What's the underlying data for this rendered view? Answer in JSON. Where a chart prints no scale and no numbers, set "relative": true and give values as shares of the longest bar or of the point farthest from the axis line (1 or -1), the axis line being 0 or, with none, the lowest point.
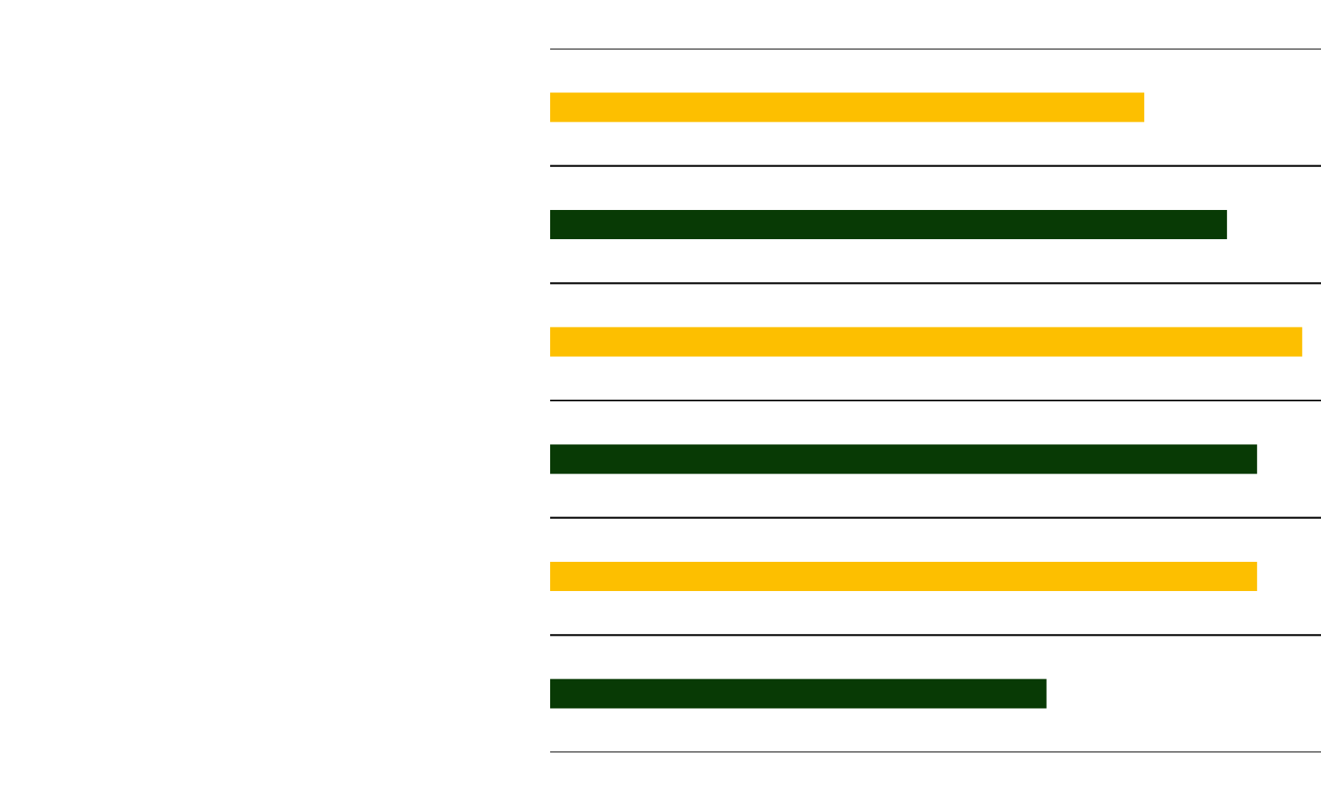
{
  "chart_data": {
    "type": "bar",
    "orientation": "horizontal",
    "relative": true,
    "categories": [
      null,
      null,
      null,
      null,
      null,
      null
    ],
    "values": [
      0.79,
      0.9,
      1,
      0.94,
      0.94,
      0.66
    ],
    "colors": [
      "#fdbf00",
      "#083a05",
      "#fdbf00",
      "#083a05",
      "#fdbf00",
      "#083a05"
    ],
    "grid": "y"
  }
}
